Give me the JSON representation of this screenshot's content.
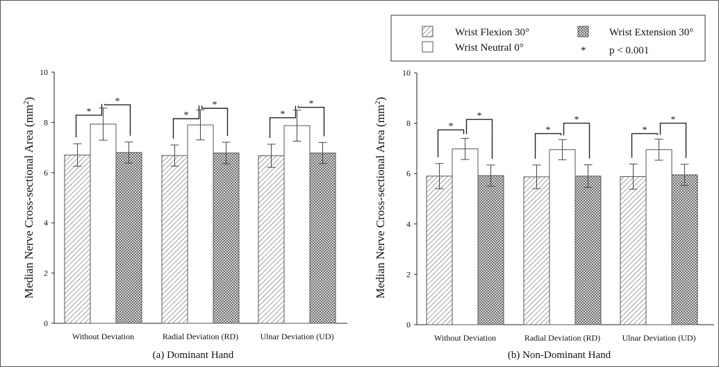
{
  "legend": {
    "items": [
      {
        "label": "Wrist Flexion 30°",
        "pattern": "hatch"
      },
      {
        "label": "Wrist Extension 30°",
        "pattern": "crosshatch"
      },
      {
        "label": "Wrist Neutral 0°",
        "pattern": "white"
      },
      {
        "label": "p < 0.001",
        "marker": "*"
      }
    ]
  },
  "significance_marker": "*",
  "chart_data": [
    {
      "type": "bar",
      "title": "(a) Dominant Hand",
      "xlabel": "",
      "ylabel": "Median Nerve Cross-sectional Area (mm²)",
      "ylabel_main": "Median Nerve Cross-sectional Area (mm",
      "ylabel_sup": "2",
      "ylabel_close": ")",
      "ylim": [
        0,
        10
      ],
      "yticks": [
        0,
        2,
        4,
        6,
        8,
        10
      ],
      "categories": [
        "Without Deviation",
        "Radial Deviation (RD)",
        "Ulnar Deviation (UD)"
      ],
      "series": [
        {
          "name": "Wrist Flexion 30°",
          "values": [
            6.7,
            6.68,
            6.67
          ],
          "errors": [
            0.45,
            0.42,
            0.46
          ]
        },
        {
          "name": "Wrist Neutral 0°",
          "values": [
            7.93,
            7.9,
            7.87
          ],
          "errors": [
            0.64,
            0.6,
            0.62
          ]
        },
        {
          "name": "Wrist Extension 30°",
          "values": [
            6.8,
            6.78,
            6.78
          ],
          "errors": [
            0.42,
            0.43,
            0.42
          ]
        }
      ],
      "significance_top": [
        8.7,
        8.56,
        8.6
      ],
      "grid": false
    },
    {
      "type": "bar",
      "title": "(b) Non-Dominant Hand",
      "xlabel": "",
      "ylabel": "Median Nerve Cross-sectional Area (mm²)",
      "ylabel_main": "Median Nerve Cross-sectional Area (mm",
      "ylabel_sup": "2",
      "ylabel_close": ")",
      "ylim": [
        0,
        10
      ],
      "yticks": [
        0,
        2,
        4,
        6,
        8,
        10
      ],
      "categories": [
        "Without Deviation",
        "Radial Deviation (RD)",
        "Ulnar Deviation (UD)"
      ],
      "series": [
        {
          "name": "Wrist Flexion 30°",
          "values": [
            5.9,
            5.87,
            5.88
          ],
          "errors": [
            0.5,
            0.47,
            0.5
          ]
        },
        {
          "name": "Wrist Neutral 0°",
          "values": [
            6.98,
            6.95,
            6.95
          ],
          "errors": [
            0.42,
            0.4,
            0.42
          ]
        },
        {
          "name": "Wrist Extension 30°",
          "values": [
            5.92,
            5.9,
            5.95
          ],
          "errors": [
            0.42,
            0.45,
            0.42
          ]
        }
      ],
      "significance_top": [
        8.15,
        8.0,
        8.0
      ],
      "grid": false
    }
  ]
}
